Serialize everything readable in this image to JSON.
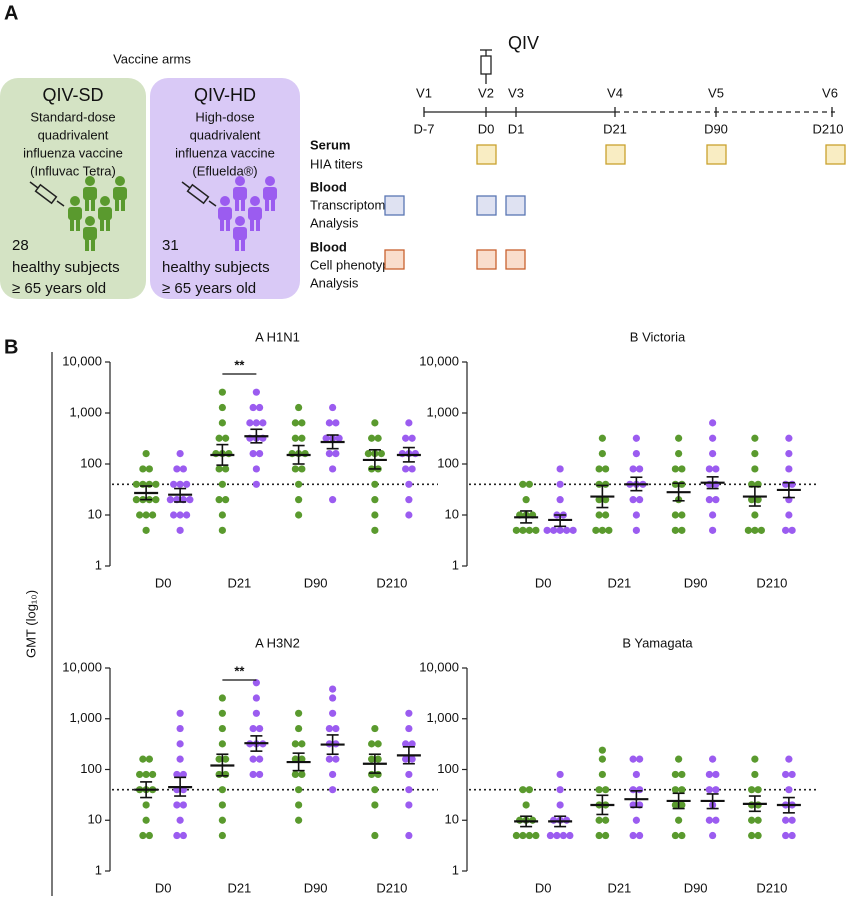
{
  "panel_a": {
    "label": "A",
    "arms_title": "Vaccine arms",
    "arms": [
      {
        "name": "QIV-SD",
        "description": [
          "Standard-dose",
          "quadrivalent",
          "influenza vaccine",
          "(Influvac Tetra)"
        ],
        "count": 28,
        "subjects": [
          "healthy subjects",
          "≥ 65 years old"
        ]
      },
      {
        "name": "QIV-HD",
        "description": [
          "High-dose",
          "quadrivalent",
          "influenza vaccine",
          "(Efluelda®)"
        ],
        "count": 31,
        "subjects": [
          "healthy subjects",
          "≥ 65 years old"
        ]
      }
    ],
    "timeline": {
      "vaccine": "QIV",
      "visits": [
        "V1",
        "V2",
        "V3",
        "V4",
        "V5",
        "V6"
      ],
      "days": [
        "D-7",
        "D0",
        "D1",
        "D21",
        "D90",
        "D210"
      ]
    },
    "assays": [
      {
        "sample": "Serum",
        "lines": [
          "HIA titers"
        ]
      },
      {
        "sample": "Blood",
        "lines": [
          "Transcriptomic",
          "Analysis"
        ]
      },
      {
        "sample": "Blood",
        "lines": [
          "Cell phenotype",
          "Analysis"
        ]
      }
    ]
  },
  "panel_b": {
    "label": "B",
    "y_label": "GMT (log₁₀)"
  },
  "chart_data": [
    {
      "type": "dot",
      "title": "A H1N1",
      "categories": [
        "D0",
        "D21",
        "D90",
        "D210"
      ],
      "log": true,
      "ylim": [
        1,
        10000
      ],
      "yticks": [
        1,
        10,
        100,
        {
          "value": 1000,
          "label": "1,000"
        },
        {
          "value": 10000,
          "label": "10,000"
        }
      ],
      "reference_line": 40,
      "significance": [
        {
          "label": "**",
          "category": "D21"
        }
      ],
      "series": [
        {
          "color": "#5a9a2e",
          "gmt": [
            27,
            150,
            150,
            120
          ],
          "ci_low": [
            20,
            95,
            100,
            80
          ],
          "ci_high": [
            37,
            240,
            230,
            190
          ],
          "points": [
            [
              5,
              10,
              10,
              10,
              20,
              20,
              20,
              20,
              40,
              40,
              40,
              40,
              80,
              80,
              160
            ],
            [
              5,
              10,
              20,
              20,
              40,
              80,
              80,
              160,
              160,
              160,
              320,
              320,
              640,
              1280,
              2560
            ],
            [
              10,
              20,
              40,
              80,
              80,
              160,
              160,
              160,
              320,
              320,
              640,
              640,
              1280
            ],
            [
              5,
              10,
              20,
              40,
              80,
              80,
              160,
              160,
              160,
              320,
              320,
              640
            ]
          ]
        },
        {
          "color": "#9b5cf0",
          "gmt": [
            25,
            350,
            270,
            150
          ],
          "ci_low": [
            18,
            260,
            200,
            110
          ],
          "ci_high": [
            33,
            480,
            370,
            210
          ],
          "points": [
            [
              5,
              10,
              10,
              10,
              20,
              20,
              20,
              20,
              40,
              40,
              40,
              80,
              80,
              160
            ],
            [
              40,
              80,
              160,
              160,
              320,
              320,
              320,
              640,
              640,
              640,
              1280,
              1280,
              2560
            ],
            [
              20,
              80,
              160,
              160,
              320,
              320,
              320,
              640,
              640,
              1280
            ],
            [
              10,
              20,
              40,
              80,
              80,
              160,
              160,
              160,
              320,
              320,
              640
            ]
          ]
        }
      ]
    },
    {
      "type": "dot",
      "title": "B Victoria",
      "categories": [
        "D0",
        "D21",
        "D90",
        "D210"
      ],
      "log": true,
      "ylim": [
        1,
        10000
      ],
      "yticks": [
        1,
        10,
        100,
        {
          "value": 1000,
          "label": "1,000"
        },
        {
          "value": 10000,
          "label": "10,000"
        }
      ],
      "reference_line": 40,
      "series": [
        {
          "color": "#5a9a2e",
          "gmt": [
            9,
            23,
            28,
            23
          ],
          "ci_low": [
            7,
            14,
            19,
            15
          ],
          "ci_high": [
            12,
            38,
            42,
            36
          ],
          "points": [
            [
              5,
              5,
              5,
              5,
              10,
              10,
              10,
              20,
              40,
              40
            ],
            [
              5,
              5,
              5,
              10,
              10,
              20,
              20,
              40,
              40,
              80,
              80,
              160,
              320
            ],
            [
              5,
              5,
              10,
              10,
              20,
              40,
              40,
              80,
              80,
              160,
              320
            ],
            [
              5,
              5,
              5,
              10,
              20,
              20,
              40,
              40,
              80,
              160,
              320
            ]
          ]
        },
        {
          "color": "#9b5cf0",
          "gmt": [
            8,
            40,
            43,
            31
          ],
          "ci_low": [
            6,
            30,
            33,
            22
          ],
          "ci_high": [
            10,
            55,
            56,
            43
          ],
          "points": [
            [
              5,
              5,
              5,
              5,
              5,
              10,
              10,
              20,
              40,
              80
            ],
            [
              5,
              10,
              20,
              20,
              40,
              40,
              40,
              80,
              80,
              160,
              320
            ],
            [
              5,
              10,
              20,
              20,
              40,
              40,
              80,
              80,
              160,
              320,
              640
            ],
            [
              5,
              5,
              10,
              20,
              40,
              40,
              80,
              160,
              320
            ]
          ]
        }
      ]
    },
    {
      "type": "dot",
      "title": "A H3N2",
      "categories": [
        "D0",
        "D21",
        "D90",
        "D210"
      ],
      "log": true,
      "ylim": [
        1,
        10000
      ],
      "yticks": [
        1,
        10,
        100,
        {
          "value": 1000,
          "label": "1,000"
        },
        {
          "value": 10000,
          "label": "10,000"
        }
      ],
      "reference_line": 40,
      "significance": [
        {
          "label": "**",
          "category": "D21"
        }
      ],
      "series": [
        {
          "color": "#5a9a2e",
          "gmt": [
            40,
            120,
            140,
            130
          ],
          "ci_low": [
            28,
            75,
            95,
            85
          ],
          "ci_high": [
            57,
            200,
            210,
            200
          ],
          "points": [
            [
              5,
              5,
              10,
              20,
              40,
              40,
              40,
              80,
              80,
              80,
              160,
              160
            ],
            [
              5,
              10,
              20,
              40,
              80,
              80,
              160,
              160,
              320,
              640,
              1280,
              2560
            ],
            [
              10,
              20,
              40,
              80,
              80,
              160,
              160,
              320,
              320,
              640,
              1280
            ],
            [
              5,
              20,
              40,
              80,
              80,
              160,
              160,
              320,
              320,
              640
            ]
          ]
        },
        {
          "color": "#9b5cf0",
          "gmt": [
            45,
            330,
            310,
            190
          ],
          "ci_low": [
            30,
            230,
            200,
            130
          ],
          "ci_high": [
            70,
            460,
            480,
            280
          ],
          "points": [
            [
              5,
              5,
              10,
              20,
              20,
              40,
              40,
              80,
              80,
              160,
              320,
              640,
              1280
            ],
            [
              80,
              80,
              160,
              160,
              320,
              320,
              320,
              640,
              640,
              1280,
              2560,
              5120
            ],
            [
              40,
              80,
              160,
              160,
              320,
              320,
              640,
              640,
              1280,
              2560,
              3840
            ],
            [
              5,
              20,
              40,
              80,
              160,
              160,
              320,
              320,
              640,
              1280
            ]
          ]
        }
      ]
    },
    {
      "type": "dot",
      "title": "B Yamagata",
      "categories": [
        "D0",
        "D21",
        "D90",
        "D210"
      ],
      "log": true,
      "ylim": [
        1,
        10000
      ],
      "yticks": [
        1,
        10,
        100,
        {
          "value": 1000,
          "label": "1,000"
        },
        {
          "value": 10000,
          "label": "10,000"
        }
      ],
      "reference_line": 40,
      "series": [
        {
          "color": "#5a9a2e",
          "gmt": [
            9.5,
            20,
            24,
            21
          ],
          "ci_low": [
            7.5,
            13,
            17,
            15
          ],
          "ci_high": [
            12,
            31,
            34,
            30
          ],
          "points": [
            [
              5,
              5,
              5,
              5,
              10,
              10,
              10,
              20,
              40,
              40
            ],
            [
              5,
              5,
              10,
              10,
              20,
              20,
              40,
              40,
              80,
              160,
              240
            ],
            [
              5,
              5,
              10,
              20,
              20,
              40,
              40,
              80,
              80,
              160
            ],
            [
              5,
              5,
              10,
              10,
              20,
              20,
              40,
              40,
              80,
              160
            ]
          ]
        },
        {
          "color": "#9b5cf0",
          "gmt": [
            9.5,
            26,
            24,
            20
          ],
          "ci_low": [
            7.5,
            18,
            17,
            14
          ],
          "ci_high": [
            12,
            38,
            33,
            28
          ],
          "points": [
            [
              5,
              5,
              5,
              5,
              10,
              10,
              10,
              20,
              40,
              80
            ],
            [
              5,
              5,
              10,
              20,
              20,
              40,
              40,
              80,
              160,
              160
            ],
            [
              5,
              10,
              10,
              20,
              40,
              40,
              80,
              80,
              160
            ],
            [
              5,
              5,
              10,
              10,
              20,
              20,
              40,
              80,
              80,
              160
            ]
          ]
        }
      ]
    }
  ]
}
